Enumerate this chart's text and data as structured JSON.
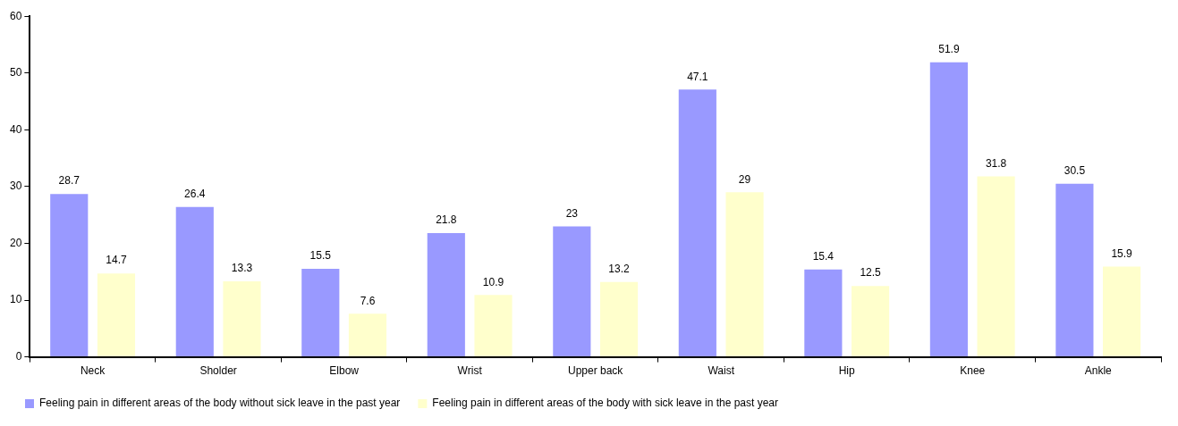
{
  "chart_data": {
    "type": "bar",
    "categories": [
      "Neck",
      "Sholder",
      "Elbow",
      "Wrist",
      "Upper back",
      "Waist",
      "Hip",
      "Knee",
      "Ankle"
    ],
    "series": [
      {
        "name": "Feeling pain in different areas of the body without sick leave in the past year",
        "color": "#9999ff",
        "values": [
          28.7,
          26.4,
          15.5,
          21.8,
          23,
          47.1,
          15.4,
          51.9,
          30.5
        ]
      },
      {
        "name": "Feeling pain in different areas of the body with sick leave in the past year",
        "color": "#ffffcc",
        "values": [
          14.7,
          13.3,
          7.6,
          10.9,
          13.2,
          29,
          12.5,
          31.8,
          15.9
        ]
      }
    ],
    "ylim": [
      0,
      60
    ],
    "yticks": [
      0,
      10,
      20,
      30,
      40,
      50,
      60
    ],
    "grid": false,
    "legend": "bottom left",
    "data_labels": true
  }
}
